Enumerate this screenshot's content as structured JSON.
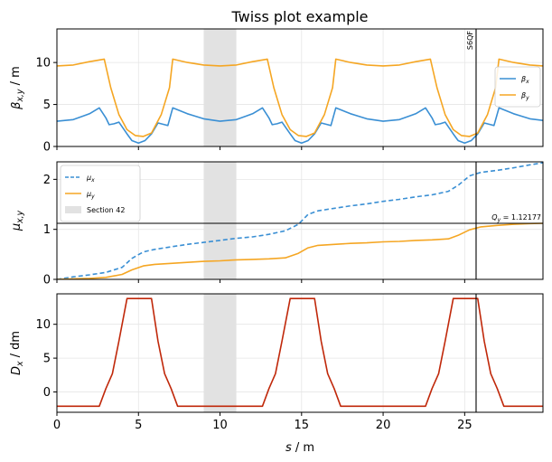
{
  "chart_data": {
    "type": "line",
    "title": "Twiss plot example",
    "xlabel": "s / m",
    "xlim": [
      0,
      29.8
    ],
    "xticks": [
      0,
      5,
      10,
      15,
      20,
      25
    ],
    "highlight_band": {
      "x": [
        9,
        11
      ],
      "label": "Section 42"
    },
    "marker": {
      "x": 25.7,
      "label": "S6QF"
    },
    "panels": [
      {
        "id": "beta",
        "ylabel": "βx,y / m",
        "ylim": [
          0,
          14
        ],
        "yticks": [
          0,
          5,
          10
        ],
        "legend": "right",
        "series": [
          {
            "name": "βx",
            "color": "#3a8fd4",
            "style": "solid",
            "points": [
              [
                0,
                3
              ],
              [
                1,
                3.2
              ],
              [
                2,
                3.9
              ],
              [
                2.6,
                4.6
              ],
              [
                3,
                3.4
              ],
              [
                3.2,
                2.6
              ],
              [
                3.5,
                2.7
              ],
              [
                3.8,
                2.9
              ],
              [
                4.3,
                1.5
              ],
              [
                4.6,
                0.7
              ],
              [
                5,
                0.4
              ],
              [
                5.4,
                0.7
              ],
              [
                5.8,
                1.5
              ],
              [
                6.2,
                2.8
              ],
              [
                6.6,
                2.6
              ],
              [
                6.8,
                2.5
              ],
              [
                7.1,
                4.6
              ],
              [
                8,
                3.9
              ],
              [
                9,
                3.3
              ],
              [
                10,
                3
              ],
              [
                11,
                3.2
              ],
              [
                12,
                3.9
              ],
              [
                12.6,
                4.6
              ],
              [
                13,
                3.4
              ],
              [
                13.2,
                2.6
              ],
              [
                13.5,
                2.7
              ],
              [
                13.8,
                2.9
              ],
              [
                14.3,
                1.5
              ],
              [
                14.6,
                0.7
              ],
              [
                15,
                0.4
              ],
              [
                15.4,
                0.7
              ],
              [
                15.8,
                1.5
              ],
              [
                16.2,
                2.8
              ],
              [
                16.6,
                2.6
              ],
              [
                16.8,
                2.5
              ],
              [
                17.1,
                4.6
              ],
              [
                18,
                3.9
              ],
              [
                19,
                3.3
              ],
              [
                20,
                3
              ],
              [
                21,
                3.2
              ],
              [
                22,
                3.9
              ],
              [
                22.6,
                4.6
              ],
              [
                23,
                3.4
              ],
              [
                23.2,
                2.6
              ],
              [
                23.5,
                2.7
              ],
              [
                23.8,
                2.9
              ],
              [
                24.3,
                1.5
              ],
              [
                24.6,
                0.7
              ],
              [
                25,
                0.4
              ],
              [
                25.4,
                0.7
              ],
              [
                25.8,
                1.5
              ],
              [
                26.2,
                2.8
              ],
              [
                26.6,
                2.6
              ],
              [
                26.8,
                2.5
              ],
              [
                27.1,
                4.6
              ],
              [
                28,
                3.9
              ],
              [
                29,
                3.3
              ],
              [
                29.8,
                3.1
              ]
            ]
          },
          {
            "name": "βy",
            "color": "#f5a623",
            "style": "solid",
            "points": [
              [
                0,
                9.6
              ],
              [
                1,
                9.7
              ],
              [
                2,
                10.1
              ],
              [
                2.9,
                10.4
              ],
              [
                3.3,
                7
              ],
              [
                3.8,
                3.8
              ],
              [
                4.3,
                2
              ],
              [
                4.8,
                1.3
              ],
              [
                5.3,
                1.2
              ],
              [
                5.8,
                1.6
              ],
              [
                6.4,
                3.8
              ],
              [
                6.9,
                7
              ],
              [
                7.1,
                10.4
              ],
              [
                8,
                10
              ],
              [
                9,
                9.7
              ],
              [
                10,
                9.6
              ],
              [
                11,
                9.7
              ],
              [
                12,
                10.1
              ],
              [
                12.9,
                10.4
              ],
              [
                13.3,
                7
              ],
              [
                13.8,
                3.8
              ],
              [
                14.3,
                2
              ],
              [
                14.8,
                1.3
              ],
              [
                15.3,
                1.2
              ],
              [
                15.8,
                1.6
              ],
              [
                16.4,
                3.8
              ],
              [
                16.9,
                7
              ],
              [
                17.1,
                10.4
              ],
              [
                18,
                10
              ],
              [
                19,
                9.7
              ],
              [
                20,
                9.6
              ],
              [
                21,
                9.7
              ],
              [
                22,
                10.1
              ],
              [
                22.9,
                10.4
              ],
              [
                23.3,
                7
              ],
              [
                23.8,
                3.8
              ],
              [
                24.3,
                2
              ],
              [
                24.8,
                1.3
              ],
              [
                25.3,
                1.2
              ],
              [
                25.8,
                1.6
              ],
              [
                26.4,
                3.8
              ],
              [
                26.9,
                7
              ],
              [
                27.1,
                10.4
              ],
              [
                28,
                10
              ],
              [
                29,
                9.7
              ],
              [
                29.8,
                9.6
              ]
            ]
          }
        ]
      },
      {
        "id": "mu",
        "ylabel": "μx,y",
        "ylim": [
          0,
          2.35
        ],
        "yticks": [
          0,
          1,
          2
        ],
        "legend": "top-left",
        "hline": {
          "y": 1.12177,
          "label": "Qy = 1.12177"
        },
        "series": [
          {
            "name": "μx",
            "color": "#3a8fd4",
            "style": "dashed",
            "points": [
              [
                0,
                0
              ],
              [
                1,
                0.05
              ],
              [
                2,
                0.09
              ],
              [
                3,
                0.14
              ],
              [
                4,
                0.24
              ],
              [
                4.6,
                0.42
              ],
              [
                5.3,
                0.55
              ],
              [
                6,
                0.6
              ],
              [
                7,
                0.65
              ],
              [
                8,
                0.7
              ],
              [
                9,
                0.74
              ],
              [
                10,
                0.78
              ],
              [
                11,
                0.82
              ],
              [
                12,
                0.85
              ],
              [
                13,
                0.9
              ],
              [
                14,
                0.97
              ],
              [
                14.8,
                1.1
              ],
              [
                15.4,
                1.3
              ],
              [
                16,
                1.37
              ],
              [
                17,
                1.42
              ],
              [
                18,
                1.47
              ],
              [
                19,
                1.51
              ],
              [
                20,
                1.56
              ],
              [
                21,
                1.6
              ],
              [
                22,
                1.65
              ],
              [
                23,
                1.69
              ],
              [
                24,
                1.76
              ],
              [
                24.6,
                1.88
              ],
              [
                25.3,
                2.07
              ],
              [
                26,
                2.14
              ],
              [
                27,
                2.18
              ],
              [
                28,
                2.23
              ],
              [
                29,
                2.29
              ],
              [
                29.8,
                2.33
              ]
            ]
          },
          {
            "name": "μy",
            "color": "#f5a623",
            "style": "solid",
            "points": [
              [
                0,
                0
              ],
              [
                1,
                0.01
              ],
              [
                2,
                0.02
              ],
              [
                3,
                0.04
              ],
              [
                4,
                0.1
              ],
              [
                4.6,
                0.19
              ],
              [
                5.3,
                0.27
              ],
              [
                6,
                0.3
              ],
              [
                7,
                0.32
              ],
              [
                8,
                0.34
              ],
              [
                9,
                0.36
              ],
              [
                10,
                0.37
              ],
              [
                11,
                0.39
              ],
              [
                12,
                0.4
              ],
              [
                13,
                0.41
              ],
              [
                14,
                0.43
              ],
              [
                14.8,
                0.52
              ],
              [
                15.4,
                0.63
              ],
              [
                16,
                0.68
              ],
              [
                17,
                0.7
              ],
              [
                18,
                0.72
              ],
              [
                19,
                0.73
              ],
              [
                20,
                0.75
              ],
              [
                21,
                0.76
              ],
              [
                22,
                0.78
              ],
              [
                23,
                0.79
              ],
              [
                24,
                0.81
              ],
              [
                24.6,
                0.88
              ],
              [
                25.3,
                0.99
              ],
              [
                26,
                1.05
              ],
              [
                27,
                1.08
              ],
              [
                28,
                1.1
              ],
              [
                29,
                1.115
              ],
              [
                29.8,
                1.12
              ]
            ]
          }
        ]
      },
      {
        "id": "disp",
        "ylabel": "Dx / dm",
        "ylim": [
          -3,
          14.5
        ],
        "yticks": [
          0,
          5,
          10
        ],
        "series": [
          {
            "name": "Dx",
            "color": "#c0280a",
            "style": "solid",
            "points": [
              [
                0,
                -2.1
              ],
              [
                2.2,
                -2.1
              ],
              [
                2.6,
                -2.1
              ],
              [
                3,
                0.5
              ],
              [
                3.4,
                2.7
              ],
              [
                3.8,
                7.5
              ],
              [
                4.3,
                13.8
              ],
              [
                5.8,
                13.8
              ],
              [
                6.2,
                7.5
              ],
              [
                6.6,
                2.7
              ],
              [
                7,
                0.5
              ],
              [
                7.4,
                -2.1
              ],
              [
                12.2,
                -2.1
              ],
              [
                12.6,
                -2.1
              ],
              [
                13,
                0.5
              ],
              [
                13.4,
                2.7
              ],
              [
                13.8,
                7.5
              ],
              [
                14.3,
                13.8
              ],
              [
                15.8,
                13.8
              ],
              [
                16.2,
                7.5
              ],
              [
                16.6,
                2.7
              ],
              [
                17,
                0.5
              ],
              [
                17.4,
                -2.1
              ],
              [
                22.2,
                -2.1
              ],
              [
                22.6,
                -2.1
              ],
              [
                23,
                0.5
              ],
              [
                23.4,
                2.7
              ],
              [
                23.8,
                7.5
              ],
              [
                24.3,
                13.8
              ],
              [
                25.8,
                13.8
              ],
              [
                26.2,
                7.5
              ],
              [
                26.6,
                2.7
              ],
              [
                27,
                0.5
              ],
              [
                27.4,
                -2.1
              ],
              [
                29.8,
                -2.1
              ]
            ]
          }
        ]
      }
    ]
  }
}
